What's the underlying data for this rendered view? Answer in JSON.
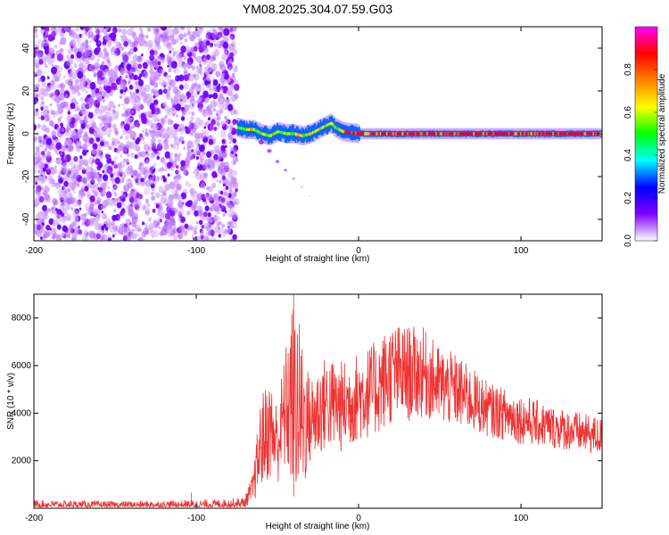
{
  "figure_title": "YM08.2025.304.07.59.G03",
  "chart_data": [
    {
      "type": "heatmap",
      "title": "YM08.2025.304.07.59.G03",
      "xlabel": "Height of straight line (km)",
      "ylabel": "Frequency (Hz)",
      "xlim": [
        -200,
        150
      ],
      "ylim": [
        -50,
        50
      ],
      "xticks": [
        -200,
        -100,
        0,
        100
      ],
      "yticks": [
        -40,
        -20,
        0,
        20,
        40
      ],
      "colorbar": {
        "label": "Normalized spectral amplitude",
        "range": [
          0,
          1
        ],
        "ticks": [
          "0.0",
          "0.2",
          "0.4",
          "0.6",
          "0.8"
        ],
        "colormap": [
          "#ffffff",
          "#7f00ff",
          "#0000ff",
          "#00ffff",
          "#00ff00",
          "#ffff00",
          "#ff8000",
          "#ff0000",
          "#ff00ff"
        ]
      },
      "regions": [
        {
          "description": "noise",
          "x_range": [
            -200,
            -75
          ],
          "f_range": [
            -50,
            50
          ],
          "amplitude": 0.1
        },
        {
          "description": "carrier",
          "x_range": [
            -75,
            150
          ],
          "f_center": 0,
          "amplitude": 0.9
        }
      ],
      "carrier_track": {
        "x": [
          -75,
          -70,
          -65,
          -60,
          -55,
          -50,
          -45,
          -40,
          -35,
          -30,
          -25,
          -20,
          -17,
          -15,
          -10,
          0,
          20,
          60,
          100,
          150
        ],
        "f": [
          3,
          2,
          2,
          0,
          -1,
          1,
          0,
          0,
          -1,
          0,
          2,
          4,
          5,
          3,
          1,
          0,
          0,
          0,
          0,
          0
        ]
      },
      "side_track": {
        "x": [
          -60,
          -55,
          -50,
          -45,
          -40,
          -35,
          -30
        ],
        "f": [
          -4,
          -8,
          -13,
          -17,
          -21,
          -25,
          -29
        ]
      }
    },
    {
      "type": "line",
      "xlabel": "Height of straight line (km)",
      "ylabel": "SNR (10 * v/v)",
      "xlim": [
        -200,
        150
      ],
      "ylim": [
        0,
        9000
      ],
      "xticks": [
        -200,
        -100,
        0,
        100
      ],
      "yticks": [
        2000,
        4000,
        6000,
        8000
      ],
      "color": "#ee3333",
      "series": [
        {
          "name": "SNR",
          "envelope": {
            "x": [
              -200,
              -150,
              -100,
              -80,
              -70,
              -65,
              -60,
              -55,
              -50,
              -45,
              -40,
              -35,
              -30,
              -25,
              -20,
              -10,
              0,
              10,
              20,
              30,
              40,
              50,
              60,
              80,
              100,
              120,
              150
            ],
            "min": [
              50,
              50,
              50,
              50,
              50,
              200,
              800,
              1200,
              1000,
              1500,
              500,
              300,
              1800,
              2000,
              2500,
              2300,
              2800,
              3000,
              3500,
              3600,
              3800,
              3500,
              3400,
              3000,
              2700,
              2500,
              2200
            ],
            "max": [
              350,
              300,
              350,
              400,
              500,
              1500,
              4800,
              5500,
              4500,
              6800,
              9000,
              7400,
              5500,
              6100,
              6400,
              6200,
              6600,
              7000,
              7800,
              7700,
              7600,
              6800,
              6500,
              5300,
              4800,
              4300,
              3800
            ]
          }
        }
      ]
    }
  ]
}
